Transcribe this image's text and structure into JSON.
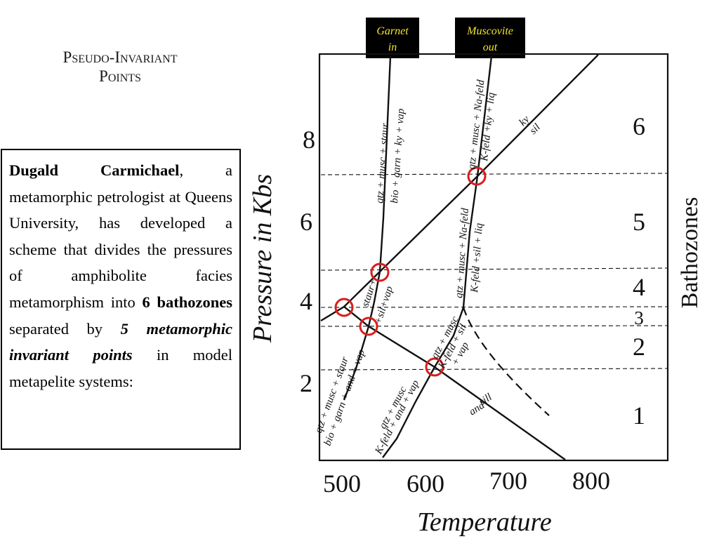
{
  "title_line1": "Pseudo-Invariant",
  "title_line2": "Points",
  "info": {
    "name": "Dugald Carmichael",
    "part1": ", a metamorphic petrologist at Queens University, has developed a scheme that divides the pressures of amphibolite facies metamorphism into ",
    "num_zones": "6 bathozones",
    "part2": " separated by ",
    "num_points": "5 metamorphic invariant points",
    "part3": " in model metapelite systems:"
  },
  "diagram": {
    "x_axis_title": "Temperature",
    "y_axis_title": "Pressure in Kbs",
    "x_ticks": [
      "500",
      "600",
      "700",
      "800"
    ],
    "y_ticks": [
      "8",
      "6",
      "4",
      "2"
    ],
    "side_title": "Bathozones",
    "zones": [
      "6",
      "5",
      "4",
      "3",
      "2",
      "1"
    ],
    "tags": {
      "garnet_l1": "Garnet",
      "garnet_l2": "in",
      "muscovite_l1": "Muscovite",
      "muscovite_l2": "out"
    },
    "labels": {
      "garnet_upper_a": "qtz + musc + staur",
      "garnet_upper_b": "bio + garn + ky + vap",
      "musc_upper_a": "qtz + musc + Na-feld",
      "musc_upper_b": "K-feld +ky + liq",
      "musc_mid_a": "qtz + musc + Na-feld",
      "musc_mid_b": "K-feld +sil + liq",
      "ky_label": "ky",
      "sil_label": "sil",
      "staur_a": "staur+",
      "staur_b": "+sil+vap",
      "lower_left_a": "qtz + musc + staur",
      "lower_left_b": "bio + garn + and + vap",
      "lower_mid_a": "qtz + musc",
      "lower_mid_b": "K-feld + and + vap",
      "inv_a": "qtz + musc",
      "inv_b": "K-feld + sil",
      "inv_c": "+ vap",
      "sill_label": "sill",
      "and_label": "and"
    }
  }
}
